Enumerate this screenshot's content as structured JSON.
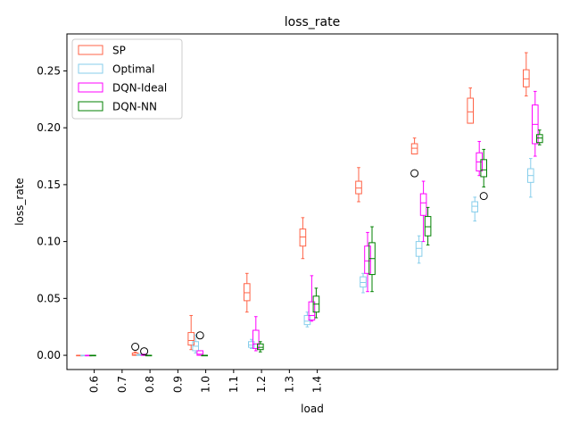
{
  "chart_data": {
    "type": "box",
    "title": "loss_rate",
    "xlabel": "load",
    "ylabel": "loss_rate",
    "ylim": [
      -0.0125,
      0.2825
    ],
    "yticks": [
      0.0,
      0.05,
      0.1,
      0.15,
      0.2,
      0.25
    ],
    "ytick_labels": [
      "0.00",
      "0.05",
      "0.10",
      "0.15",
      "0.20",
      "0.25"
    ],
    "xtick_labels": [
      "0.6",
      "0.7",
      "0.8",
      "0.9",
      "1.0",
      "1.1",
      "1.2",
      "1.3",
      "1.4"
    ],
    "legend_position": "upper-left",
    "grid": false,
    "series": [
      {
        "name": "SP",
        "color": "#ff6347",
        "boxes": [
          {
            "load": "0.6",
            "whislo": 0.0,
            "q1": 0.0,
            "med": 0.0,
            "q3": 0.0,
            "whishi": 0.0,
            "fliers": []
          },
          {
            "load": "0.7",
            "whislo": 0.0,
            "q1": 0.0,
            "med": 0.0005,
            "q3": 0.002,
            "whishi": 0.003,
            "fliers": [
              0.0075
            ]
          },
          {
            "load": "0.8",
            "whislo": 0.005,
            "q1": 0.009,
            "med": 0.013,
            "q3": 0.02,
            "whishi": 0.035,
            "fliers": []
          },
          {
            "load": "0.9",
            "whislo": 0.038,
            "q1": 0.048,
            "med": 0.055,
            "q3": 0.063,
            "whishi": 0.072,
            "fliers": []
          },
          {
            "load": "1.0",
            "whislo": 0.085,
            "q1": 0.096,
            "med": 0.104,
            "q3": 0.111,
            "whishi": 0.121,
            "fliers": []
          },
          {
            "load": "1.1",
            "whislo": 0.135,
            "q1": 0.142,
            "med": 0.147,
            "q3": 0.153,
            "whishi": 0.165,
            "fliers": []
          },
          {
            "load": "1.2",
            "whislo": 0.177,
            "q1": 0.177,
            "med": 0.182,
            "q3": 0.186,
            "whishi": 0.191,
            "fliers": [
              0.16
            ]
          },
          {
            "load": "1.3",
            "whislo": 0.204,
            "q1": 0.204,
            "med": 0.214,
            "q3": 0.226,
            "whishi": 0.235,
            "fliers": []
          },
          {
            "load": "1.4",
            "whislo": 0.228,
            "q1": 0.236,
            "med": 0.243,
            "q3": 0.251,
            "whishi": 0.266,
            "fliers": []
          }
        ]
      },
      {
        "name": "Optimal",
        "color": "#87ceeb",
        "boxes": [
          {
            "load": "0.6",
            "whislo": 0.0,
            "q1": 0.0,
            "med": 0.0,
            "q3": 0.0,
            "whishi": 0.0,
            "fliers": []
          },
          {
            "load": "0.7",
            "whislo": 0.0,
            "q1": 0.0,
            "med": 0.0,
            "q3": 0.0005,
            "whishi": 0.001,
            "fliers": []
          },
          {
            "load": "0.8",
            "whislo": 0.002,
            "q1": 0.004,
            "med": 0.008,
            "q3": 0.012,
            "whishi": 0.018,
            "fliers": []
          },
          {
            "load": "0.9",
            "whislo": 0.006,
            "q1": 0.007,
            "med": 0.009,
            "q3": 0.012,
            "whishi": 0.014,
            "fliers": []
          },
          {
            "load": "1.0",
            "whislo": 0.025,
            "q1": 0.027,
            "med": 0.03,
            "q3": 0.035,
            "whishi": 0.038,
            "fliers": []
          },
          {
            "load": "1.1",
            "whislo": 0.055,
            "q1": 0.06,
            "med": 0.064,
            "q3": 0.069,
            "whishi": 0.072,
            "fliers": []
          },
          {
            "load": "1.2",
            "whislo": 0.081,
            "q1": 0.087,
            "med": 0.094,
            "q3": 0.1,
            "whishi": 0.105,
            "fliers": []
          },
          {
            "load": "1.3",
            "whislo": 0.118,
            "q1": 0.126,
            "med": 0.131,
            "q3": 0.135,
            "whishi": 0.139,
            "fliers": []
          },
          {
            "load": "1.4",
            "whislo": 0.139,
            "q1": 0.152,
            "med": 0.158,
            "q3": 0.164,
            "whishi": 0.173,
            "fliers": []
          }
        ]
      },
      {
        "name": "DQN-Ideal",
        "color": "#ff00ff",
        "boxes": [
          {
            "load": "0.6",
            "whislo": 0.0,
            "q1": 0.0,
            "med": 0.0,
            "q3": 0.0,
            "whishi": 0.0,
            "fliers": []
          },
          {
            "load": "0.7",
            "whislo": 0.0,
            "q1": 0.0,
            "med": 0.0,
            "q3": 0.0005,
            "whishi": 0.001,
            "fliers": [
              0.0035
            ]
          },
          {
            "load": "0.8",
            "whislo": 0.0,
            "q1": 0.0,
            "med": 0.001,
            "q3": 0.004,
            "whishi": 0.004,
            "fliers": [
              0.0175
            ]
          },
          {
            "load": "0.9",
            "whislo": 0.004,
            "q1": 0.006,
            "med": 0.01,
            "q3": 0.022,
            "whishi": 0.034,
            "fliers": []
          },
          {
            "load": "1.0",
            "whislo": 0.03,
            "q1": 0.031,
            "med": 0.035,
            "q3": 0.047,
            "whishi": 0.07,
            "fliers": []
          },
          {
            "load": "1.1",
            "whislo": 0.056,
            "q1": 0.072,
            "med": 0.083,
            "q3": 0.096,
            "whishi": 0.108,
            "fliers": []
          },
          {
            "load": "1.2",
            "whislo": 0.1,
            "q1": 0.123,
            "med": 0.134,
            "q3": 0.142,
            "whishi": 0.153,
            "fliers": []
          },
          {
            "load": "1.3",
            "whislo": 0.158,
            "q1": 0.162,
            "med": 0.17,
            "q3": 0.178,
            "whishi": 0.188,
            "fliers": []
          },
          {
            "load": "1.4",
            "whislo": 0.175,
            "q1": 0.186,
            "med": 0.203,
            "q3": 0.22,
            "whishi": 0.232,
            "fliers": []
          }
        ]
      },
      {
        "name": "DQN-NN",
        "color": "#008000",
        "boxes": [
          {
            "load": "0.6",
            "whislo": 0.0,
            "q1": 0.0,
            "med": 0.0,
            "q3": 0.0,
            "whishi": 0.0,
            "fliers": []
          },
          {
            "load": "0.7",
            "whislo": 0.0,
            "q1": 0.0,
            "med": 0.0,
            "q3": 0.0,
            "whishi": 0.0,
            "fliers": []
          },
          {
            "load": "0.8",
            "whislo": 0.0,
            "q1": 0.0,
            "med": 0.0,
            "q3": 0.0,
            "whishi": 0.0,
            "fliers": []
          },
          {
            "load": "0.9",
            "whislo": 0.003,
            "q1": 0.005,
            "med": 0.007,
            "q3": 0.01,
            "whishi": 0.012,
            "fliers": []
          },
          {
            "load": "1.0",
            "whislo": 0.033,
            "q1": 0.038,
            "med": 0.045,
            "q3": 0.052,
            "whishi": 0.059,
            "fliers": []
          },
          {
            "load": "1.1",
            "whislo": 0.056,
            "q1": 0.071,
            "med": 0.085,
            "q3": 0.099,
            "whishi": 0.113,
            "fliers": []
          },
          {
            "load": "1.2",
            "whislo": 0.097,
            "q1": 0.105,
            "med": 0.113,
            "q3": 0.122,
            "whishi": 0.13,
            "fliers": []
          },
          {
            "load": "1.3",
            "whislo": 0.148,
            "q1": 0.157,
            "med": 0.163,
            "q3": 0.172,
            "whishi": 0.181,
            "fliers": [
              0.14
            ]
          },
          {
            "load": "1.4",
            "whislo": 0.185,
            "q1": 0.187,
            "med": 0.191,
            "q3": 0.194,
            "whishi": 0.198,
            "fliers": []
          }
        ]
      }
    ]
  }
}
